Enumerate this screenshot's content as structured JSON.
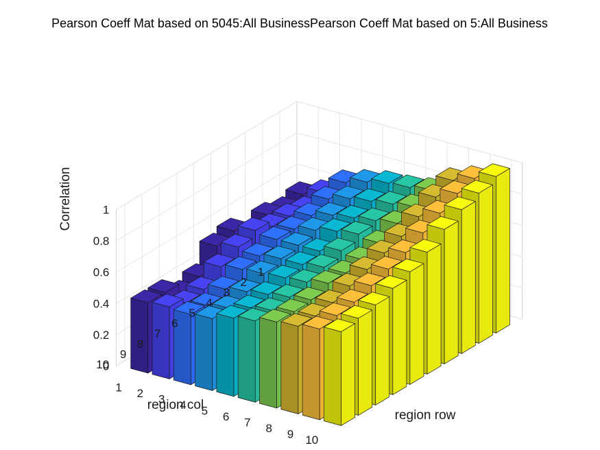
{
  "chart_data": {
    "type": "bar3",
    "title": "Pearson Coeff Mat based on 5045:All BusinessPearson Coeff Mat based on 5:All Business",
    "xlabel": "region row",
    "ylabel": "region col",
    "zlabel": "Correlation",
    "x_ticks": [
      "1",
      "2",
      "3",
      "4",
      "5",
      "6",
      "7",
      "8",
      "9",
      "10"
    ],
    "y_ticks": [
      "1",
      "2",
      "3",
      "4",
      "5",
      "6",
      "7",
      "8",
      "9",
      "10"
    ],
    "z_ticks": [
      "0",
      "0.2",
      "0.4",
      "0.6",
      "0.8",
      "1"
    ],
    "zlim": [
      0,
      1
    ],
    "grid": true,
    "colormap": [
      "#3e26a8",
      "#4743f3",
      "#2f70ff",
      "#1f98e9",
      "#09b8d2",
      "#27c7a6",
      "#7dcc50",
      "#d6ba2f",
      "#fec03b",
      "#f9fb0e"
    ],
    "values": [
      [
        0.55,
        0.6,
        0.7,
        0.74,
        0.77,
        0.78,
        0.8,
        0.9,
        0.95,
        1.0
      ],
      [
        0.52,
        0.56,
        0.66,
        0.7,
        0.72,
        0.74,
        0.76,
        0.86,
        0.92,
        0.96
      ],
      [
        0.55,
        0.58,
        0.62,
        0.66,
        0.68,
        0.7,
        0.72,
        0.8,
        0.86,
        0.92
      ],
      [
        0.5,
        0.58,
        0.6,
        0.63,
        0.66,
        0.68,
        0.66,
        0.74,
        0.8,
        0.86
      ],
      [
        0.58,
        0.62,
        0.6,
        0.6,
        0.6,
        0.64,
        0.62,
        0.7,
        0.74,
        0.78
      ],
      [
        0.55,
        0.58,
        0.56,
        0.58,
        0.58,
        0.6,
        0.6,
        0.66,
        0.7,
        0.72
      ],
      [
        0.42,
        0.52,
        0.54,
        0.55,
        0.56,
        0.57,
        0.6,
        0.62,
        0.66,
        0.68
      ],
      [
        0.38,
        0.44,
        0.48,
        0.5,
        0.52,
        0.54,
        0.56,
        0.58,
        0.62,
        0.64
      ],
      [
        0.45,
        0.42,
        0.44,
        0.46,
        0.5,
        0.52,
        0.55,
        0.56,
        0.6,
        0.62
      ],
      [
        0.45,
        0.46,
        0.45,
        0.46,
        0.5,
        0.52,
        0.55,
        0.56,
        0.58,
        0.6
      ]
    ]
  }
}
